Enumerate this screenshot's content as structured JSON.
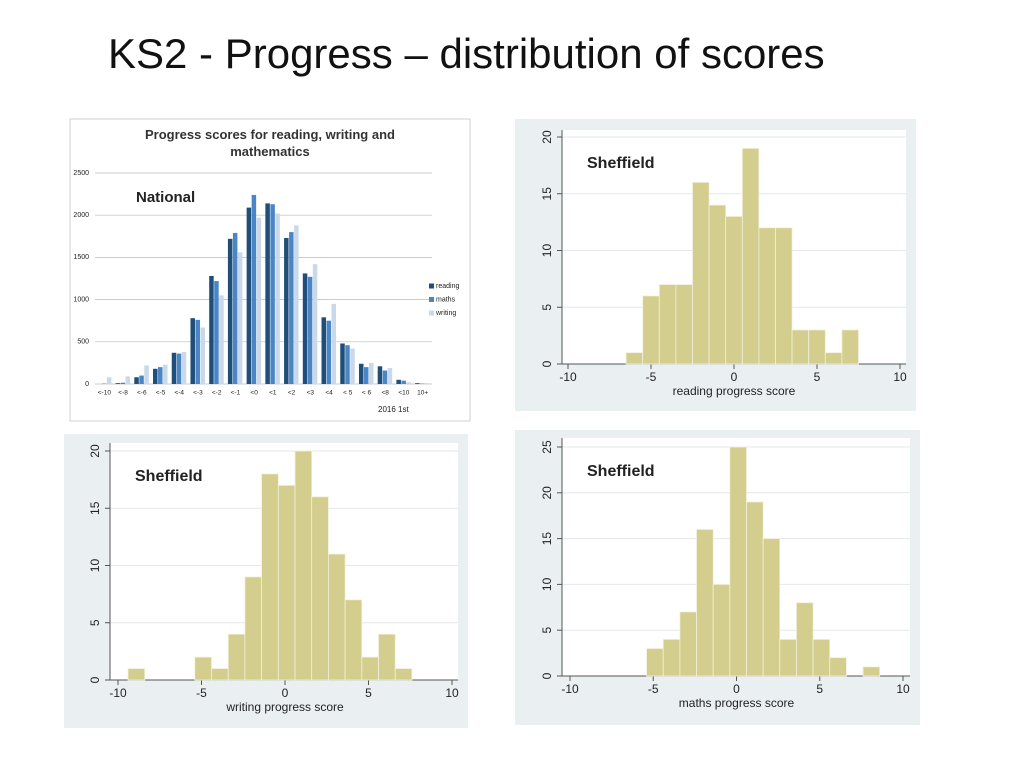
{
  "title": "KS2 - Progress – distribution of scores",
  "chart_data": [
    {
      "type": "bar",
      "title": "Progress scores for reading, writing and mathematics",
      "annotation": "National",
      "note": "2016 1st",
      "categories": [
        "<-10",
        "<-8",
        "<-6",
        "<-5",
        "<-4",
        "<-3",
        "<-2",
        "<-1",
        "<0",
        "<1",
        "<2",
        "<3",
        "<4",
        "< 5",
        "< 6",
        "<8",
        "<10",
        "10+"
      ],
      "series": [
        {
          "name": "reading",
          "color": "#1f4e79",
          "values": [
            0,
            10,
            80,
            180,
            370,
            780,
            1280,
            1720,
            2090,
            2140,
            1730,
            1310,
            790,
            480,
            240,
            210,
            50,
            10
          ]
        },
        {
          "name": "maths",
          "color": "#4a86c5",
          "values": [
            5,
            15,
            100,
            200,
            360,
            760,
            1220,
            1790,
            2240,
            2130,
            1800,
            1270,
            750,
            460,
            200,
            160,
            40,
            5
          ]
        },
        {
          "name": "writing",
          "color": "#c9d9ea",
          "values": [
            80,
            90,
            220,
            230,
            380,
            670,
            1050,
            1560,
            1970,
            2020,
            1880,
            1420,
            950,
            420,
            250,
            190,
            20,
            10
          ]
        }
      ],
      "ylim": [
        0,
        2500
      ],
      "yticks": [
        0,
        500,
        1000,
        1500,
        2000,
        2500
      ],
      "grid": true,
      "legend": "right"
    },
    {
      "type": "histogram",
      "annotation": "Sheffield",
      "xlabel": "reading progress score",
      "color": "#d3ce8d",
      "bins": [
        -6.5,
        -5.5,
        -4.5,
        -3.5,
        -2.5,
        -1.5,
        -0.5,
        0.5,
        1.5,
        2.5,
        3.5,
        4.5,
        5.5,
        6.5,
        7.5
      ],
      "counts": [
        1,
        6,
        7,
        7,
        16,
        14,
        13,
        19,
        12,
        12,
        3,
        3,
        1,
        3
      ],
      "xlim": [
        -10,
        10
      ],
      "xticks": [
        -10,
        -5,
        0,
        5,
        10
      ],
      "ylim": [
        0,
        20
      ],
      "yticks": [
        0,
        5,
        10,
        15,
        20
      ],
      "grid": true
    },
    {
      "type": "histogram",
      "annotation": "Sheffield",
      "xlabel": "writing progress score",
      "color": "#d3ce8d",
      "bins": [
        -9.4,
        -8.4,
        -7.4,
        -6.4,
        -5.4,
        -4.4,
        -3.4,
        -2.4,
        -1.4,
        -0.4,
        0.6,
        1.6,
        2.6,
        3.6,
        4.6,
        5.6,
        6.6,
        7.6
      ],
      "counts": [
        1,
        0,
        0,
        0,
        2,
        1,
        4,
        9,
        18,
        17,
        20,
        16,
        11,
        7,
        2,
        4,
        1
      ],
      "xlim": [
        -10,
        10
      ],
      "xticks": [
        -10,
        -5,
        0,
        5,
        10
      ],
      "ylim": [
        0,
        20
      ],
      "yticks": [
        0,
        5,
        10,
        15,
        20
      ],
      "grid": true
    },
    {
      "type": "histogram",
      "annotation": "Sheffield",
      "xlabel": "maths progress score",
      "color": "#d3ce8d",
      "bins": [
        -5.4,
        -4.4,
        -3.4,
        -2.4,
        -1.4,
        -0.4,
        0.6,
        1.6,
        2.6,
        3.6,
        4.6,
        5.6,
        6.6,
        7.6,
        8.6
      ],
      "counts": [
        3,
        4,
        7,
        16,
        10,
        25,
        19,
        15,
        4,
        8,
        4,
        2,
        0,
        1
      ],
      "xlim": [
        -10,
        10
      ],
      "xticks": [
        -10,
        -5,
        0,
        5,
        10
      ],
      "ylim": [
        0,
        25
      ],
      "yticks": [
        0,
        5,
        10,
        15,
        20,
        25
      ],
      "grid": true
    }
  ]
}
